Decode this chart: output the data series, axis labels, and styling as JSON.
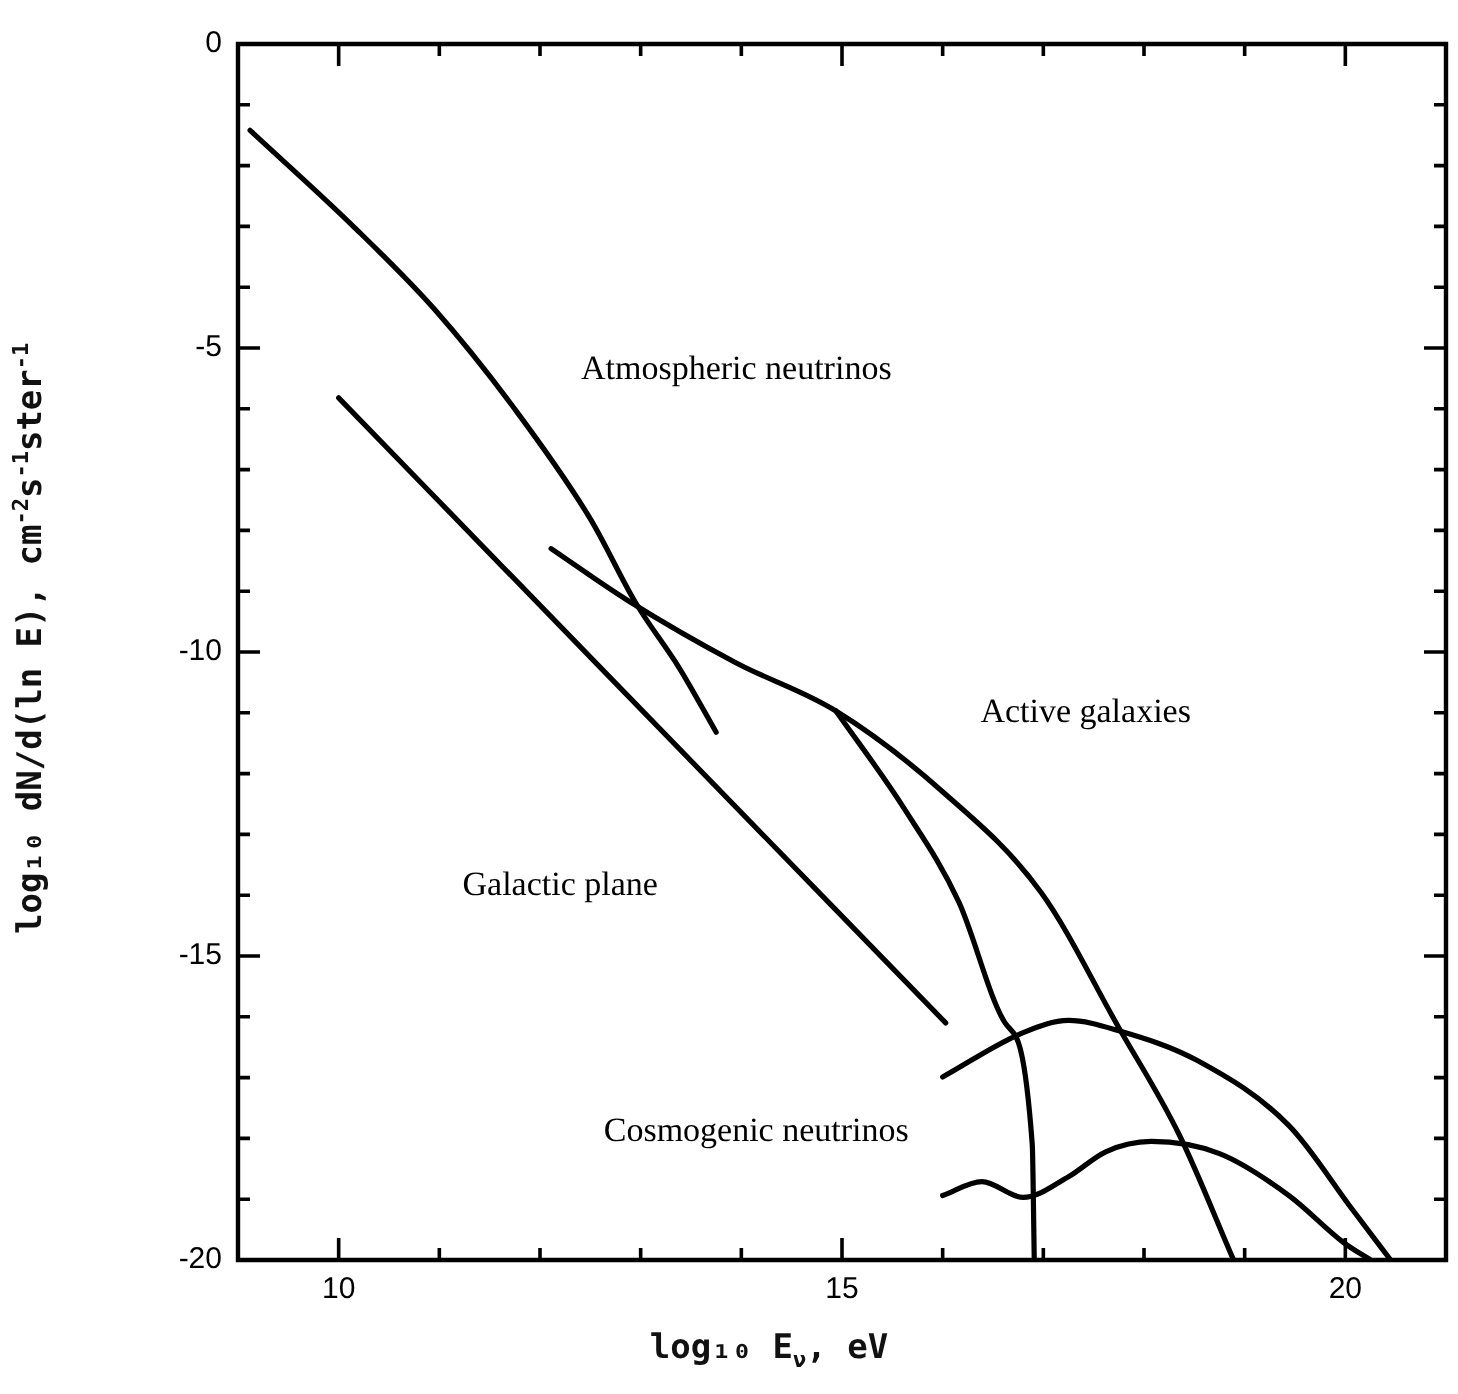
{
  "chart_data": {
    "type": "line",
    "xlabel": "log₁₀ E$_{ν}$, eV",
    "ylabel": "log₁₀ dN/d(ln E), cm$^{-2}$s$^{-1}$ster$^{-1}$",
    "xlim": [
      9,
      21
    ],
    "ylim": [
      -20,
      0
    ],
    "xticks": [
      {
        "value": 9,
        "label": null
      },
      10,
      {
        "value": 11,
        "label": null
      },
      {
        "value": 12,
        "label": null
      },
      {
        "value": 13,
        "label": null
      },
      {
        "value": 14,
        "label": null
      },
      15,
      {
        "value": 16,
        "label": null
      },
      {
        "value": 17,
        "label": null
      },
      {
        "value": 18,
        "label": null
      },
      {
        "value": 19,
        "label": null
      },
      20,
      {
        "value": 21,
        "label": null
      }
    ],
    "yticks": [
      -20,
      {
        "value": -19,
        "label": null
      },
      {
        "value": -18,
        "label": null
      },
      {
        "value": -17,
        "label": null
      },
      {
        "value": -16,
        "label": null
      },
      -15,
      {
        "value": -14,
        "label": null
      },
      {
        "value": -13,
        "label": null
      },
      {
        "value": -12,
        "label": null
      },
      {
        "value": -11,
        "label": null
      },
      -10,
      {
        "value": -9,
        "label": null
      },
      {
        "value": -8,
        "label": null
      },
      {
        "value": -7,
        "label": null
      },
      {
        "value": -6,
        "label": null
      },
      -5,
      {
        "value": -4,
        "label": null
      },
      {
        "value": -3,
        "label": null
      },
      {
        "value": -2,
        "label": null
      },
      {
        "value": -1,
        "label": null
      },
      0
    ],
    "marker": "none",
    "line_style": "solid",
    "legend": false,
    "series": [
      {
        "name": "Atmospheric neutrinos",
        "color": "#000000",
        "x": [
          9.12,
          10.14,
          10.95,
          11.77,
          12.5,
          12.95,
          13.39,
          13.75
        ],
        "values": [
          -1.42,
          -2.99,
          -4.36,
          -6.05,
          -7.81,
          -9.19,
          -10.28,
          -11.32
        ]
      },
      {
        "name": "Galactic plane",
        "color": "#000000",
        "x": [
          10.0,
          12.62,
          16.03
        ],
        "values": [
          -5.82,
          -10.29,
          -16.1
        ]
      },
      {
        "name": "Active galaxies",
        "color": "#000000",
        "x": [
          12.11,
          12.86,
          13.95,
          14.94,
          15.98,
          16.98,
          17.75,
          18.35,
          18.89
        ],
        "values": [
          -8.3,
          -9.14,
          -10.18,
          -10.97,
          -12.27,
          -13.96,
          -16.18,
          -17.94,
          -20
        ]
      },
      {
        "color": "#000000",
        "x": [
          14.94,
          15.62,
          16.16,
          16.62,
          16.89,
          16.91
        ],
        "values": [
          -10.97,
          -12.58,
          -14.11,
          -16.1,
          -18.1,
          -20
        ]
      },
      {
        "name": "Cosmogenic neutrinos",
        "color": "#000000",
        "x": [
          16.0,
          16.8,
          17.25,
          17.75,
          18.53,
          19.44,
          20.07,
          20.45
        ],
        "values": [
          -16.99,
          -16.26,
          -16.06,
          -16.23,
          -16.72,
          -17.79,
          -19.17,
          -20
        ]
      },
      {
        "color": "#000000",
        "x": [
          16.0,
          16.39,
          16.8,
          17.25,
          17.62,
          18.07,
          18.75,
          19.44,
          19.98,
          20.25
        ],
        "values": [
          -18.94,
          -18.71,
          -18.97,
          -18.63,
          -18.22,
          -18.05,
          -18.25,
          -18.94,
          -19.71,
          -20
        ]
      }
    ]
  }
}
